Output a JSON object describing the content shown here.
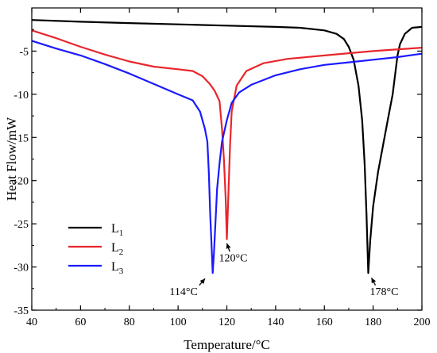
{
  "chart_data": {
    "type": "line",
    "title": "",
    "xlabel": "Temperature/°C",
    "ylabel": "Heat Flow/mW",
    "xlim": [
      40,
      200
    ],
    "ylim": [
      -35,
      0
    ],
    "xticks": [
      "40",
      "60",
      "80",
      "100",
      "120",
      "140",
      "160",
      "180",
      "200"
    ],
    "yticks": [
      "-5",
      "-10",
      "-15",
      "-20",
      "-25",
      "-30",
      "-35"
    ],
    "grid": false,
    "legend_position": "left",
    "series": [
      {
        "name": "L",
        "subscript": "1",
        "color": "#000000",
        "points": [
          [
            40,
            -1.4
          ],
          [
            60,
            -1.6
          ],
          [
            80,
            -1.75
          ],
          [
            100,
            -1.9
          ],
          [
            120,
            -2.05
          ],
          [
            140,
            -2.2
          ],
          [
            150,
            -2.3
          ],
          [
            160,
            -2.6
          ],
          [
            165,
            -3.0
          ],
          [
            168,
            -3.6
          ],
          [
            170,
            -4.5
          ],
          [
            172,
            -6.0
          ],
          [
            174,
            -9.0
          ],
          [
            175.5,
            -13.0
          ],
          [
            176.5,
            -18.0
          ],
          [
            177.3,
            -24.0
          ],
          [
            178,
            -30.7
          ],
          [
            178.8,
            -27.0
          ],
          [
            180,
            -23.0
          ],
          [
            182,
            -19.0
          ],
          [
            184,
            -16.0
          ],
          [
            186,
            -13.0
          ],
          [
            188,
            -10.0
          ],
          [
            190,
            -5.5
          ],
          [
            191,
            -4.2
          ],
          [
            193,
            -3.0
          ],
          [
            196,
            -2.3
          ],
          [
            200,
            -2.2
          ]
        ]
      },
      {
        "name": "L",
        "subscript": "2",
        "color": "#e8262c",
        "points": [
          [
            40,
            -2.6
          ],
          [
            50,
            -3.5
          ],
          [
            60,
            -4.5
          ],
          [
            70,
            -5.4
          ],
          [
            80,
            -6.2
          ],
          [
            90,
            -6.8
          ],
          [
            100,
            -7.1
          ],
          [
            106,
            -7.3
          ],
          [
            110,
            -7.9
          ],
          [
            113,
            -8.8
          ],
          [
            115,
            -9.6
          ],
          [
            117,
            -10.8
          ],
          [
            118,
            -14.0
          ],
          [
            118.8,
            -17.5
          ],
          [
            119.5,
            -22.0
          ],
          [
            120,
            -26.8
          ],
          [
            120.6,
            -22.0
          ],
          [
            121.3,
            -16.0
          ],
          [
            122,
            -12.0
          ],
          [
            124,
            -9.0
          ],
          [
            128,
            -7.3
          ],
          [
            135,
            -6.4
          ],
          [
            145,
            -5.9
          ],
          [
            160,
            -5.5
          ],
          [
            180,
            -5.0
          ],
          [
            200,
            -4.6
          ]
        ]
      },
      {
        "name": "L",
        "subscript": "3",
        "color": "#1a1aff",
        "points": [
          [
            40,
            -3.8
          ],
          [
            50,
            -4.7
          ],
          [
            60,
            -5.5
          ],
          [
            70,
            -6.5
          ],
          [
            80,
            -7.6
          ],
          [
            90,
            -8.8
          ],
          [
            100,
            -10.0
          ],
          [
            106,
            -10.7
          ],
          [
            109,
            -12.0
          ],
          [
            111,
            -14.0
          ],
          [
            112,
            -15.5
          ],
          [
            112.6,
            -19.0
          ],
          [
            113.2,
            -24.0
          ],
          [
            113.8,
            -28.0
          ],
          [
            114.2,
            -30.7
          ],
          [
            114.7,
            -28.5
          ],
          [
            115.3,
            -25.0
          ],
          [
            116,
            -21.0
          ],
          [
            117,
            -18.0
          ],
          [
            118,
            -15.5
          ],
          [
            120,
            -13.0
          ],
          [
            122,
            -11.0
          ],
          [
            125,
            -9.8
          ],
          [
            130,
            -8.9
          ],
          [
            140,
            -7.8
          ],
          [
            150,
            -7.1
          ],
          [
            160,
            -6.6
          ],
          [
            170,
            -6.3
          ],
          [
            180,
            -6.0
          ],
          [
            190,
            -5.7
          ],
          [
            200,
            -5.3
          ]
        ]
      }
    ],
    "annotations": [
      {
        "text": "114°C",
        "x": 114,
        "y": -30.7
      },
      {
        "text": "120°C",
        "x": 120,
        "y": -26.8
      },
      {
        "text": "178°C",
        "x": 178,
        "y": -30.7
      }
    ]
  }
}
